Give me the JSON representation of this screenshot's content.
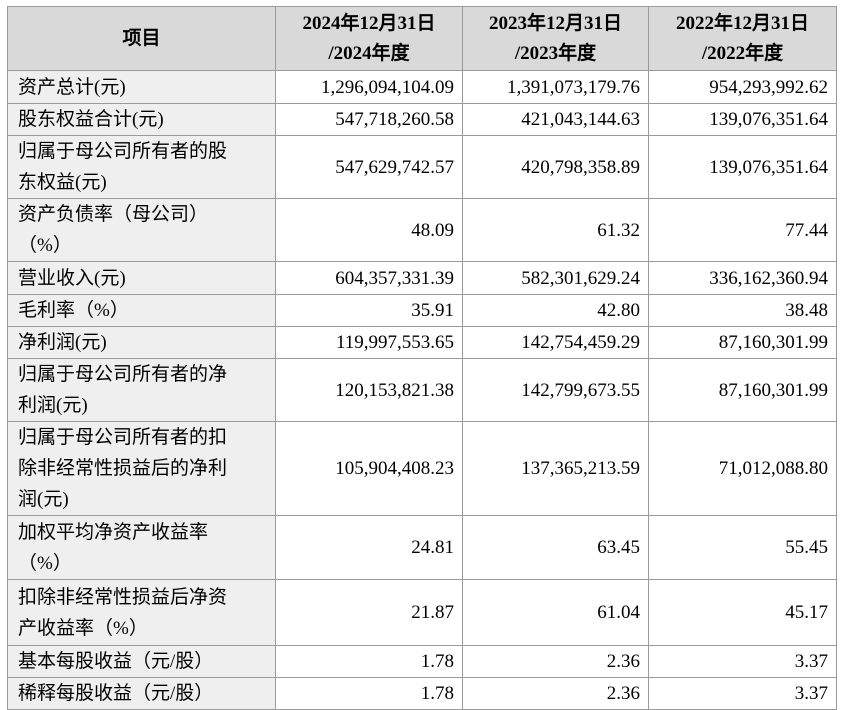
{
  "table": {
    "header": [
      [
        "项目"
      ],
      [
        "2024年12月31日",
        "/2024年度"
      ],
      [
        "2023年12月31日",
        "/2023年度"
      ],
      [
        "2022年12月31日",
        "/2022年度"
      ]
    ],
    "rows": [
      [
        [
          "资产总计(元)"
        ],
        "1,296,094,104.09",
        "1,391,073,179.76",
        "954,293,992.62"
      ],
      [
        [
          "股东权益合计(元)"
        ],
        "547,718,260.58",
        "421,043,144.63",
        "139,076,351.64"
      ],
      [
        [
          "归属于母公司所有者的股",
          "东权益(元)"
        ],
        "547,629,742.57",
        "420,798,358.89",
        "139,076,351.64"
      ],
      [
        [
          "资产负债率（母公司）",
          "（%）"
        ],
        "48.09",
        "61.32",
        "77.44"
      ],
      [
        [
          "营业收入(元)"
        ],
        "604,357,331.39",
        "582,301,629.24",
        "336,162,360.94"
      ],
      [
        [
          "毛利率（%）"
        ],
        "35.91",
        "42.80",
        "38.48"
      ],
      [
        [
          "净利润(元)"
        ],
        "119,997,553.65",
        "142,754,459.29",
        "87,160,301.99"
      ],
      [
        [
          "归属于母公司所有者的净",
          "利润(元)"
        ],
        "120,153,821.38",
        "142,799,673.55",
        "87,160,301.99"
      ],
      [
        [
          "归属于母公司所有者的扣",
          "除非经常性损益后的净利",
          "润(元)"
        ],
        "105,904,408.23",
        "137,365,213.59",
        "71,012,088.80"
      ],
      [
        [
          "加权平均净资产收益率",
          "（%）"
        ],
        "24.81",
        "63.45",
        "55.45"
      ],
      [
        [
          "扣除非经常性损益后净资",
          "产收益率（%）"
        ],
        "21.87",
        "61.04",
        "45.17"
      ],
      [
        [
          "基本每股收益（元/股）"
        ],
        "1.78",
        "2.36",
        "3.37"
      ],
      [
        [
          "稀释每股收益（元/股）"
        ],
        "1.78",
        "2.36",
        "3.37"
      ]
    ]
  }
}
